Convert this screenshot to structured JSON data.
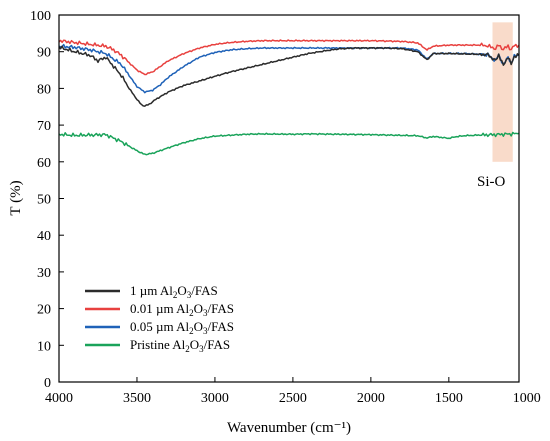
{
  "chart_data": {
    "type": "line",
    "title": "",
    "xlabel": "Wavenumber (cm⁻¹)",
    "ylabel": "T (%)",
    "xlim": [
      4000,
      1050
    ],
    "ylim": [
      0,
      100
    ],
    "x_reversed": true,
    "x_ticks": [
      4000,
      3500,
      3000,
      2500,
      2000,
      1500,
      1000
    ],
    "y_ticks": [
      0,
      10,
      20,
      30,
      40,
      50,
      60,
      70,
      80,
      90,
      100
    ],
    "legend_position": "lower-left",
    "annotation": {
      "label": "Si-O",
      "band_x": [
        1220,
        1090
      ],
      "band_y": [
        60,
        98
      ],
      "color": "#f7cfb8"
    },
    "series": [
      {
        "name": "Pristine Al2O3/FAS",
        "legend_main": "Pristine Al",
        "legend_rest": "/FAS",
        "color": "#1aa35a",
        "x": [
          4000,
          3900,
          3800,
          3700,
          3600,
          3500,
          3450,
          3400,
          3300,
          3200,
          3100,
          3000,
          2800,
          2700,
          2500,
          2400,
          2200,
          2000,
          1800,
          1700,
          1640,
          1600,
          1500,
          1460,
          1400,
          1300,
          1200,
          1100,
          1050
        ],
        "y": [
          67.5,
          67.2,
          67.3,
          67.4,
          65.5,
          63,
          62,
          62.3,
          63.8,
          65.2,
          66.3,
          67,
          67.5,
          67.6,
          67.5,
          67.6,
          67.5,
          67.4,
          67.2,
          67.1,
          66.5,
          66.9,
          66.4,
          66.8,
          67.1,
          67.3,
          67.4,
          67.6,
          67.7
        ]
      },
      {
        "name": "0.01 µm Al2O3/FAS",
        "legend_main": "0.01 µm Al",
        "legend_rest": "/FAS",
        "color": "#e8413f",
        "x": [
          4000,
          3900,
          3800,
          3700,
          3650,
          3600,
          3550,
          3500,
          3450,
          3400,
          3350,
          3300,
          3200,
          3100,
          3000,
          2900,
          2800,
          2700,
          2500,
          2400,
          2200,
          2000,
          1800,
          1700,
          1640,
          1600,
          1500,
          1400,
          1300,
          1250,
          1200,
          1180,
          1150,
          1120,
          1100,
          1080,
          1050
        ],
        "y": [
          93,
          92.5,
          92,
          91.5,
          90.5,
          89,
          87,
          85,
          83.8,
          84.5,
          86,
          87.5,
          89.5,
          91,
          92,
          92.5,
          92.8,
          93,
          93,
          93,
          93,
          93,
          92.8,
          92.4,
          90.5,
          91.5,
          91.8,
          91.8,
          91.8,
          91.6,
          90.8,
          91.8,
          90.6,
          91.6,
          90.5,
          91.7,
          91.8
        ]
      },
      {
        "name": "0.05 µm Al2O3/FAS",
        "legend_main": "0.05 µm Al",
        "legend_rest": "/FAS",
        "color": "#1f62b8",
        "x": [
          4000,
          3900,
          3800,
          3700,
          3650,
          3600,
          3550,
          3500,
          3450,
          3400,
          3350,
          3300,
          3200,
          3100,
          3000,
          2900,
          2800,
          2700,
          2500,
          2400,
          2200,
          2000,
          1800,
          1700,
          1640,
          1600,
          1500,
          1400,
          1300,
          1250,
          1200,
          1180,
          1150,
          1120,
          1100,
          1080,
          1050
        ],
        "y": [
          91.5,
          91.2,
          90.5,
          89.5,
          88,
          86.5,
          83.5,
          80.5,
          79,
          79.5,
          81,
          83,
          86,
          88.5,
          89.8,
          90.5,
          90.8,
          91,
          91,
          91,
          91,
          91,
          91,
          90.5,
          88,
          89.5,
          89.5,
          89.5,
          89.3,
          89.2,
          87.5,
          89.3,
          86.3,
          88.8,
          86.5,
          89,
          89.2
        ]
      },
      {
        "name": "1 µm Al2O3/FAS",
        "legend_main": "1 µm Al",
        "legend_rest": "/FAS",
        "color": "#2b2b2b",
        "x": [
          4000,
          3900,
          3800,
          3750,
          3700,
          3650,
          3600,
          3550,
          3500,
          3470,
          3450,
          3420,
          3380,
          3300,
          3200,
          3100,
          3000,
          2900,
          2800,
          2700,
          2600,
          2500,
          2400,
          2300,
          2200,
          2100,
          2000,
          1900,
          1800,
          1700,
          1640,
          1600,
          1500,
          1400,
          1300,
          1250,
          1200,
          1180,
          1150,
          1120,
          1100,
          1080,
          1050
        ],
        "y": [
          91.2,
          90,
          89,
          87.5,
          88.5,
          86,
          83.5,
          80,
          77,
          75.5,
          75.2,
          75.7,
          77,
          79,
          80.8,
          82,
          83.3,
          84.5,
          85.5,
          86.5,
          87.5,
          88.5,
          89.5,
          90.2,
          90.8,
          91,
          91,
          91,
          90.8,
          90,
          87.8,
          89.5,
          89.5,
          89.4,
          89.3,
          89.2,
          87.5,
          89.2,
          86.2,
          88.7,
          86.5,
          88.8,
          89
        ]
      }
    ]
  }
}
